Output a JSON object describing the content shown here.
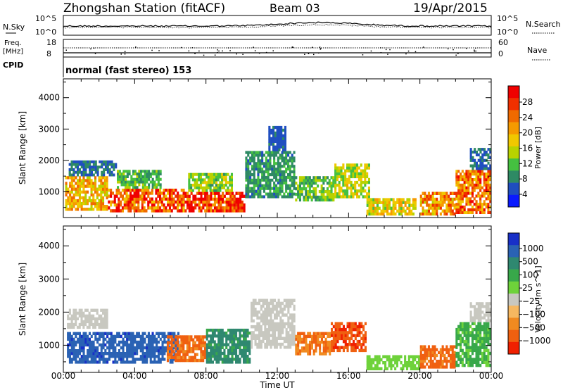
{
  "header": {
    "title": "Zhongshan Station (fitACF)",
    "beam": "Beam 03",
    "date": "19/Apr/2015"
  },
  "top_panels": {
    "nsky_label": "N.Sky",
    "nsky_tick_hi": "10^5",
    "nsky_tick_lo": "10^0",
    "nsearch_label": "N.Search",
    "nsearch_tick_hi": "10^5",
    "nsearch_tick_lo": "10^0",
    "freq_label_1": "Freq.",
    "freq_label_2": "[MHz]",
    "freq_tick_hi": "18",
    "freq_tick_lo": "8",
    "nave_label": "Nave",
    "nave_tick_hi": "60",
    "nave_tick_lo": "0",
    "cpid_label": "CPID",
    "cpid_text": "normal (fast stereo) 153"
  },
  "chart_data": [
    {
      "type": "heatmap",
      "panel": "power",
      "xlabel": "",
      "ylabel": "Slant Range [km]",
      "x_ticks": [
        "00:00",
        "04:00",
        "08:00",
        "12:00",
        "16:00",
        "20:00",
        "00:00"
      ],
      "y_ticks": [
        1000,
        2000,
        3000,
        4000
      ],
      "xlim_hours": [
        0,
        24
      ],
      "ylim_km": [
        180,
        4600
      ],
      "colorbar": {
        "label": "Power [dB]",
        "ticks": [
          "4",
          "8",
          "12",
          "16",
          "20",
          "24",
          "28"
        ],
        "colors": [
          "#0a1aff",
          "#1f4ec0",
          "#2e8a64",
          "#45c040",
          "#b8d200",
          "#f0c800",
          "#f59a00",
          "#f06a00",
          "#f03000",
          "#f00000"
        ]
      },
      "echo_regions": [
        {
          "t0": 0.1,
          "t1": 2.5,
          "r0": 400,
          "r1": 1500,
          "power": 18
        },
        {
          "t0": 0.3,
          "t1": 3.0,
          "r0": 1500,
          "r1": 2000,
          "power": 6
        },
        {
          "t0": 2.5,
          "t1": 6.8,
          "r0": 350,
          "r1": 1100,
          "power": 24
        },
        {
          "t0": 3.0,
          "t1": 5.5,
          "r0": 1100,
          "r1": 1700,
          "power": 10
        },
        {
          "t0": 6.8,
          "t1": 10.2,
          "r0": 350,
          "r1": 1000,
          "power": 26
        },
        {
          "t0": 7.0,
          "t1": 9.5,
          "r0": 1000,
          "r1": 1600,
          "power": 12
        },
        {
          "t0": 10.2,
          "t1": 13.0,
          "r0": 800,
          "r1": 2300,
          "power": 8
        },
        {
          "t0": 11.5,
          "t1": 12.5,
          "r0": 2300,
          "r1": 3100,
          "power": 5
        },
        {
          "t0": 13.0,
          "t1": 15.2,
          "r0": 700,
          "r1": 1500,
          "power": 11
        },
        {
          "t0": 15.2,
          "t1": 17.2,
          "r0": 800,
          "r1": 1900,
          "power": 14
        },
        {
          "t0": 17.0,
          "t1": 19.8,
          "r0": 250,
          "r1": 800,
          "power": 16
        },
        {
          "t0": 20.0,
          "t1": 22.0,
          "r0": 250,
          "r1": 1000,
          "power": 20
        },
        {
          "t0": 22.0,
          "t1": 24.0,
          "r0": 300,
          "r1": 1700,
          "power": 22
        },
        {
          "t0": 22.8,
          "t1": 24.0,
          "r0": 1700,
          "r1": 2400,
          "power": 6
        }
      ]
    },
    {
      "type": "heatmap",
      "panel": "velocity",
      "xlabel": "Time UT",
      "ylabel": "Slant Range [km]",
      "x_ticks": [
        "00:00",
        "04:00",
        "08:00",
        "12:00",
        "16:00",
        "20:00",
        "00:00"
      ],
      "y_ticks": [
        1000,
        2000,
        3000,
        4000
      ],
      "xlim_hours": [
        0,
        24
      ],
      "ylim_km": [
        180,
        4600
      ],
      "colorbar": {
        "label": "Velocity [m s^-1]",
        "ticks": [
          "1000",
          "500",
          "100",
          "25",
          "−25",
          "−100",
          "−500",
          "−1000"
        ],
        "colors": [
          "#1830c8",
          "#2a62b4",
          "#2f8870",
          "#38a84a",
          "#6ed23a",
          "#c8c8c0",
          "#f6b860",
          "#f08a20",
          "#f06010",
          "#f02000"
        ]
      },
      "echo_regions": [
        {
          "t0": 0.2,
          "t1": 6.5,
          "r0": 450,
          "r1": 1400,
          "vel": 800
        },
        {
          "t0": 0.2,
          "t1": 2.5,
          "r0": 1500,
          "r1": 2100,
          "vel": 10
        },
        {
          "t0": 5.8,
          "t1": 8.0,
          "r0": 500,
          "r1": 1300,
          "vel": -300
        },
        {
          "t0": 8.0,
          "t1": 10.5,
          "r0": 450,
          "r1": 1500,
          "vel": 300
        },
        {
          "t0": 10.5,
          "t1": 13.0,
          "r0": 900,
          "r1": 2400,
          "vel": 10
        },
        {
          "t0": 13.0,
          "t1": 15.0,
          "r0": 700,
          "r1": 1400,
          "vel": -250
        },
        {
          "t0": 15.0,
          "t1": 17.0,
          "r0": 800,
          "r1": 1700,
          "vel": -450
        },
        {
          "t0": 17.0,
          "t1": 20.0,
          "r0": 250,
          "r1": 700,
          "vel": 50
        },
        {
          "t0": 20.0,
          "t1": 22.0,
          "r0": 300,
          "r1": 1000,
          "vel": -300
        },
        {
          "t0": 22.0,
          "t1": 24.0,
          "r0": 350,
          "r1": 1700,
          "vel": 120
        },
        {
          "t0": 22.8,
          "t1": 24.0,
          "r0": 1700,
          "r1": 2300,
          "vel": 5
        }
      ]
    }
  ]
}
